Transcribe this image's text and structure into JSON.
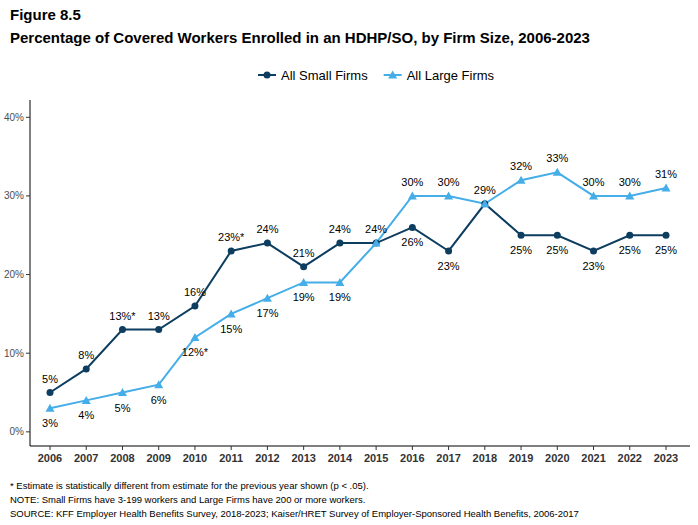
{
  "chart_data": {
    "type": "line",
    "title": "Figure 8.5",
    "subtitle": "Percentage of Covered Workers Enrolled in an HDHP/SO, by Firm Size, 2006-2023",
    "notes": [
      "* Estimate is statistically different from estimate for the previous year shown (p < .05).",
      "NOTE: Small Firms have 3-199 workers and Large Firms have 200 or more workers.",
      "SOURCE: KFF Employer Health Benefits Survey, 2018-2023; Kaiser/HRET Survey of Employer-Sponsored Health Benefits, 2006-2017"
    ],
    "categories": [
      "2006",
      "2007",
      "2008",
      "2009",
      "2010",
      "2011",
      "2012",
      "2013",
      "2014",
      "2015",
      "2016",
      "2017",
      "2018",
      "2019",
      "2020",
      "2021",
      "2022",
      "2023"
    ],
    "series": [
      {
        "name": "All Small Firms",
        "color": "#0d3d5f",
        "marker": "circle",
        "line_style": "solid",
        "values": [
          5,
          8,
          13,
          13,
          16,
          23,
          24,
          21,
          24,
          24,
          26,
          23,
          29,
          25,
          25,
          23,
          25,
          25
        ],
        "value_labels": [
          "5%",
          "8%",
          "13%*",
          "13%",
          "16%",
          "23%*",
          "24%",
          "21%",
          "24%",
          "24%",
          "26%",
          "23%",
          "29%",
          "25%",
          "25%",
          "23%",
          "25%",
          "25%"
        ]
      },
      {
        "name": "All Large Firms",
        "color": "#45ade8",
        "marker": "triangle",
        "line_style": "solid",
        "values": [
          3,
          4,
          5,
          6,
          12,
          15,
          17,
          19,
          19,
          24,
          30,
          30,
          29,
          32,
          33,
          30,
          30,
          31
        ],
        "value_labels": [
          "3%",
          "4%",
          "5%",
          "6%",
          "12%*",
          "15%",
          "17%",
          "19%",
          "19%",
          null,
          "30%",
          "30%",
          null,
          "32%",
          "33%",
          "30%",
          "30%",
          "31%"
        ]
      }
    ],
    "ylim": [
      -1.8,
      42.2
    ],
    "yticks": [
      {
        "value": 0,
        "label": "0%"
      },
      {
        "value": 10,
        "label": "10%"
      },
      {
        "value": 20,
        "label": "20%"
      },
      {
        "value": 30,
        "label": "30%"
      },
      {
        "value": 40,
        "label": "40%"
      }
    ],
    "grid": false,
    "legend": "top",
    "data_labels": true
  }
}
